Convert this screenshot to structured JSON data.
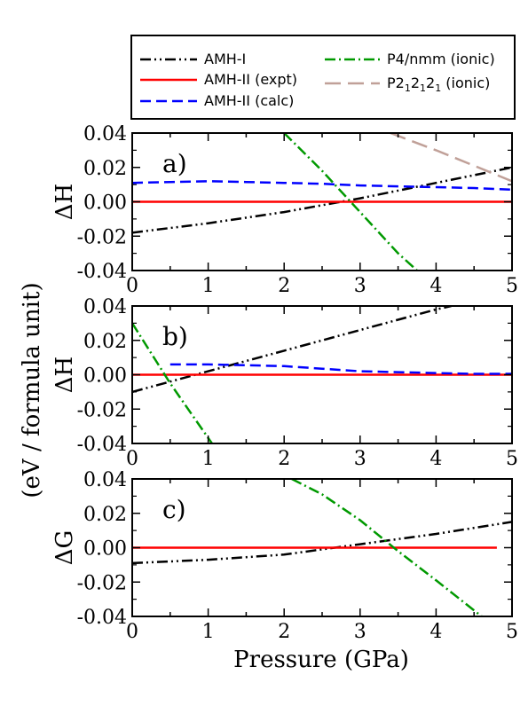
{
  "chart_data": {
    "type": "line",
    "shared": {
      "xlabel": "Pressure (GPa)",
      "ylabel": "(eV / formula unit)",
      "xlim": [
        0,
        5
      ],
      "ylim": [
        -0.04,
        0.04
      ],
      "xticks": [
        "0",
        "1",
        "2",
        "3",
        "4",
        "5"
      ],
      "yticks": [
        "0.04",
        "0.02",
        "0.00",
        "-0.02",
        "-0.04"
      ],
      "grid": false,
      "legend_placement": "top"
    },
    "legend": [
      {
        "key": "amh1",
        "label": "AMH-I",
        "color": "#000000",
        "dash": "dash-dot-dot"
      },
      {
        "key": "amh2expt",
        "label": "AMH-II (expt)",
        "color": "#ff0000",
        "dash": "solid"
      },
      {
        "key": "amh2calc",
        "label": "AMH-II (calc)",
        "color": "#0000ff",
        "dash": "dashed"
      },
      {
        "key": "p4nmm",
        "label": "P4/nmm (ionic)",
        "color": "#009900",
        "dash": "dash-dot"
      },
      {
        "key": "p212121",
        "label_main": "P2",
        "label_sub": "1",
        "label_suffix": " (ionic)",
        "color": "#c0a098",
        "dash": "long-dash"
      }
    ],
    "panels": [
      {
        "label": "a)",
        "ylabel": "ΔH",
        "series": [
          {
            "key": "amh1",
            "x": [
              0,
              1,
              2,
              3,
              4,
              5
            ],
            "y": [
              -0.018,
              -0.0125,
              -0.006,
              0.002,
              0.011,
              0.02
            ]
          },
          {
            "key": "amh2expt",
            "x": [
              0,
              5
            ],
            "y": [
              0,
              0
            ]
          },
          {
            "key": "amh2calc",
            "x": [
              0,
              0.5,
              1,
              1.5,
              2,
              2.5,
              3,
              3.5,
              4,
              4.5,
              5
            ],
            "y": [
              0.011,
              0.0115,
              0.012,
              0.0115,
              0.011,
              0.0105,
              0.0095,
              0.009,
              0.0085,
              0.008,
              0.007
            ]
          },
          {
            "key": "p4nmm",
            "x": [
              2,
              2.5,
              3,
              3.5,
              3.75
            ],
            "y": [
              0.04,
              0.018,
              -0.006,
              -0.03,
              -0.04
            ]
          },
          {
            "key": "p212121",
            "x": [
              3.4,
              4,
              4.5,
              5
            ],
            "y": [
              0.04,
              0.03,
              0.021,
              0.012
            ]
          }
        ]
      },
      {
        "label": "b)",
        "ylabel": "ΔH",
        "series": [
          {
            "key": "amh1",
            "x": [
              0,
              1,
              2,
              3,
              4,
              4.2
            ],
            "y": [
              -0.01,
              0.002,
              0.014,
              0.026,
              0.038,
              0.04
            ]
          },
          {
            "key": "amh2expt",
            "x": [
              0,
              5
            ],
            "y": [
              0,
              0
            ]
          },
          {
            "key": "amh2calc",
            "x": [
              0.5,
              1,
              1.5,
              2,
              2.5,
              3,
              3.5,
              4,
              4.5,
              5
            ],
            "y": [
              0.006,
              0.006,
              0.0055,
              0.005,
              0.0035,
              0.002,
              0.0015,
              0.001,
              0.0005,
              0.0005
            ]
          },
          {
            "key": "p4nmm",
            "x": [
              0,
              0.5,
              1.05
            ],
            "y": [
              0.03,
              -0.005,
              -0.04
            ]
          }
        ]
      },
      {
        "label": "c)",
        "ylabel": "ΔG",
        "series": [
          {
            "key": "amh1",
            "x": [
              0,
              1,
              2,
              2.5,
              3,
              4,
              5
            ],
            "y": [
              -0.009,
              -0.007,
              -0.004,
              -0.001,
              0.002,
              0.008,
              0.015
            ]
          },
          {
            "key": "amh2expt",
            "x": [
              0,
              4.8
            ],
            "y": [
              0,
              0
            ]
          },
          {
            "key": "p4nmm",
            "x": [
              2.1,
              2.5,
              3,
              3.5,
              4,
              4.6
            ],
            "y": [
              0.04,
              0.031,
              0.016,
              -0.002,
              -0.019,
              -0.04
            ]
          }
        ]
      }
    ]
  }
}
